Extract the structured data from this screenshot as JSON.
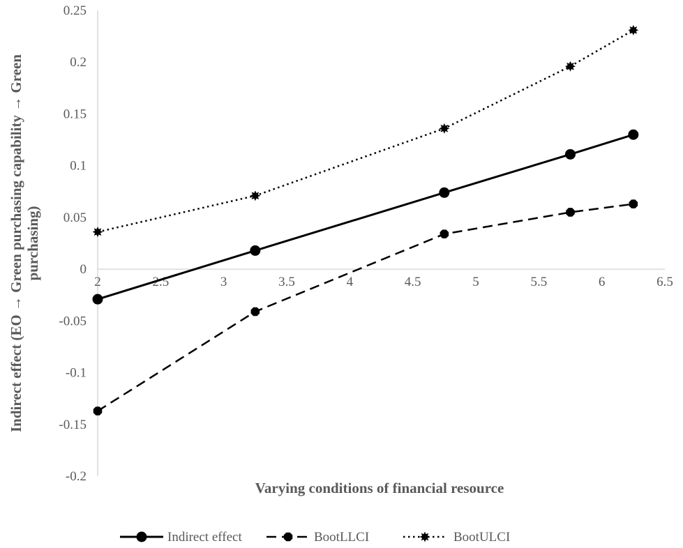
{
  "chart_data": {
    "type": "line",
    "title": "",
    "xlabel": "Varying conditions of financial resource",
    "ylabel": "Indirect effect (EO → Green purchasing capability → Green purchasing)",
    "xlim": [
      2,
      6.5
    ],
    "ylim": [
      -0.2,
      0.25
    ],
    "x_ticks": [
      "2",
      "2.5",
      "3",
      "3.5",
      "4",
      "4.5",
      "5",
      "5.5",
      "6",
      "6.5"
    ],
    "y_ticks": [
      "0.25",
      "0.2",
      "0.15",
      "0.1",
      "0.05",
      "0",
      "-0.05",
      "-0.1",
      "-0.15",
      "-0.2"
    ],
    "grid": false,
    "legend_position": "bottom",
    "series": [
      {
        "name": "Indirect effect",
        "style": "solid",
        "marker": "circle",
        "color": "#000000",
        "x": [
          2,
          3.25,
          4.75,
          5.75,
          6.25
        ],
        "y": [
          -0.029,
          0.018,
          0.074,
          0.111,
          0.13
        ]
      },
      {
        "name": "BootLLCI",
        "style": "dashed",
        "marker": "octagon",
        "color": "#000000",
        "x": [
          2,
          3.25,
          4.75,
          5.75,
          6.25
        ],
        "y": [
          -0.137,
          -0.041,
          0.034,
          0.055,
          0.063
        ]
      },
      {
        "name": "BootULCI",
        "style": "dotted",
        "marker": "star",
        "color": "#000000",
        "x": [
          2,
          3.25,
          4.75,
          5.75,
          6.25
        ],
        "y": [
          0.036,
          0.071,
          0.136,
          0.196,
          0.231
        ]
      }
    ]
  }
}
